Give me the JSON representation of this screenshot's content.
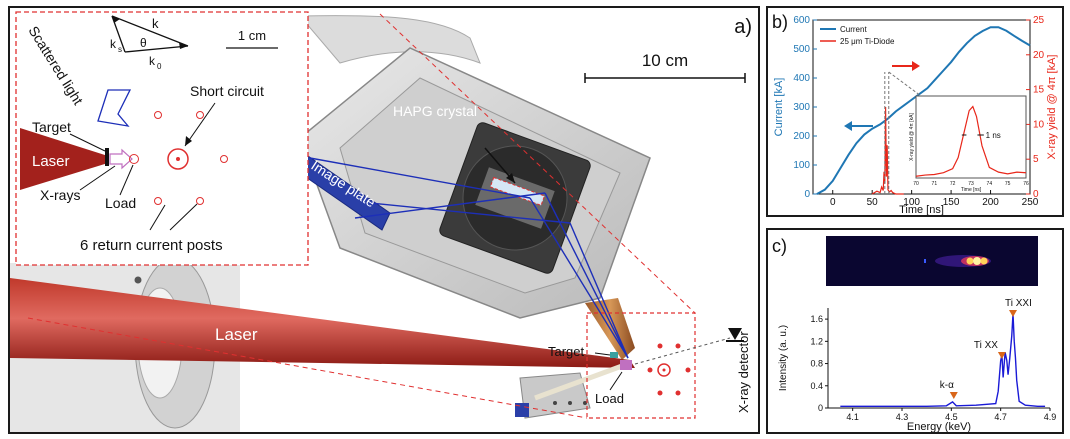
{
  "panel_a": {
    "label": "a)",
    "scale_main": "10 cm",
    "scale_inset": "1 cm",
    "hapg": "HAPG crystal",
    "image_plate": "Image plate",
    "laser_main": "Laser",
    "target_main": "Target",
    "load_main": "Load",
    "xray_detector": "X-ray detector",
    "inset": {
      "scattered": "Scattered light",
      "target": "Target",
      "laser": "Laser",
      "xrays": "X-rays",
      "load": "Load",
      "short": "Short circuit",
      "posts": "6 return current posts",
      "k": "k",
      "ks": "k",
      "ks_sub": "s",
      "k0": "k",
      "k0_sub": "0",
      "theta": "θ"
    }
  },
  "panel_b": {
    "label": "b)",
    "inset_xlabel": "Time [ns]",
    "inset_ylabel": "X-ray yield @ 4π [kA]",
    "annotation": "1 ns"
  },
  "panel_c": {
    "label": "c)",
    "peaks": {
      "tixxi": "Ti XXI",
      "tixx": "Ti XX",
      "ka": "k-α"
    }
  },
  "colors": {
    "current": "#1f77b4",
    "xray": "#e8271a",
    "laser": "#a3211c",
    "spectrum": "#1a1ad6",
    "marker": "#d9661a",
    "dash": "#e03030"
  },
  "chart_data": [
    {
      "type": "line",
      "xlabel": "Time [ns]",
      "ylabel": "Current [kA]",
      "ylabel2": "X-ray yield @ 4π [kA]",
      "xlim": [
        -25,
        250
      ],
      "ylim": [
        0,
        600
      ],
      "ylim2": [
        0,
        25
      ],
      "xticks": [
        "0",
        "50",
        "100",
        "150",
        "200",
        "250"
      ],
      "yticks": [
        "0",
        "100",
        "200",
        "300",
        "400",
        "500",
        "600"
      ],
      "yticks2": [
        "0",
        "5",
        "10",
        "15",
        "20",
        "25"
      ],
      "legend_position": "top-left",
      "series": [
        {
          "name": "Current",
          "axis": "left",
          "x": [
            -20,
            -10,
            0,
            10,
            20,
            30,
            40,
            50,
            60,
            70,
            80,
            90,
            100,
            110,
            120,
            130,
            140,
            150,
            160,
            170,
            180,
            190,
            200,
            210,
            220,
            230,
            240,
            250
          ],
          "y": [
            0,
            15,
            45,
            90,
            135,
            175,
            205,
            225,
            240,
            260,
            285,
            305,
            325,
            345,
            365,
            395,
            425,
            455,
            490,
            520,
            545,
            562,
            575,
            575,
            563,
            545,
            528,
            512
          ]
        },
        {
          "name": "25 μm Ti-Diode",
          "axis": "right",
          "x": [
            50,
            56,
            60,
            62,
            64,
            65,
            66,
            67,
            68,
            69,
            70,
            72,
            74,
            76,
            80,
            90
          ],
          "y": [
            0,
            0.4,
            0.2,
            1.0,
            0.5,
            3.2,
            1.5,
            12.5,
            2.5,
            7.0,
            0.6,
            0.3,
            0.5,
            0.2,
            0,
            0
          ]
        }
      ],
      "inset": {
        "xlabel": "Time [ns]",
        "ylabel": "X-ray yield @ 4π [kA]",
        "xlim": [
          70,
          76
        ],
        "xticks": [
          "70",
          "71",
          "72",
          "73",
          "74",
          "75",
          "76"
        ],
        "x": [
          70,
          70.5,
          71,
          71.5,
          72,
          72.3,
          72.6,
          72.9,
          73.1,
          73.3,
          73.6,
          74,
          74.5,
          75,
          75.5,
          76
        ],
        "y": [
          0.3,
          0.5,
          0.6,
          0.9,
          1.6,
          3.5,
          7.5,
          11.5,
          12.2,
          10.5,
          5.5,
          1.8,
          1.0,
          0.7,
          1.0,
          0.9
        ],
        "ylim": [
          0,
          14
        ]
      }
    },
    {
      "type": "line",
      "xlabel": "Energy (keV)",
      "ylabel": "Intensity (a. u.)",
      "xlim": [
        4.0,
        4.9
      ],
      "ylim": [
        0,
        1.8
      ],
      "xticks": [
        "4.1",
        "4.3",
        "4.5",
        "4.7",
        "4.9"
      ],
      "yticks": [
        "0",
        "0.4",
        "0.8",
        "1.2",
        "1.6"
      ],
      "series": [
        {
          "name": "",
          "x": [
            4.05,
            4.2,
            4.4,
            4.48,
            4.505,
            4.52,
            4.6,
            4.68,
            4.69,
            4.7,
            4.705,
            4.71,
            4.718,
            4.725,
            4.73,
            4.737,
            4.745,
            4.75,
            4.755,
            4.76,
            4.765,
            4.775,
            4.8,
            4.85,
            4.88
          ],
          "y": [
            0.03,
            0.03,
            0.03,
            0.04,
            0.11,
            0.04,
            0.05,
            0.08,
            0.3,
            0.85,
            0.95,
            0.55,
            1.0,
            0.85,
            0.6,
            0.9,
            1.3,
            1.7,
            1.2,
            0.9,
            0.5,
            0.12,
            0.05,
            0.03,
            0.03
          ]
        }
      ],
      "markers": [
        {
          "label": "k-α",
          "x": 4.51
        },
        {
          "label": "Ti XX",
          "x": 4.705
        },
        {
          "label": "Ti XXI",
          "x": 4.75
        }
      ]
    }
  ]
}
